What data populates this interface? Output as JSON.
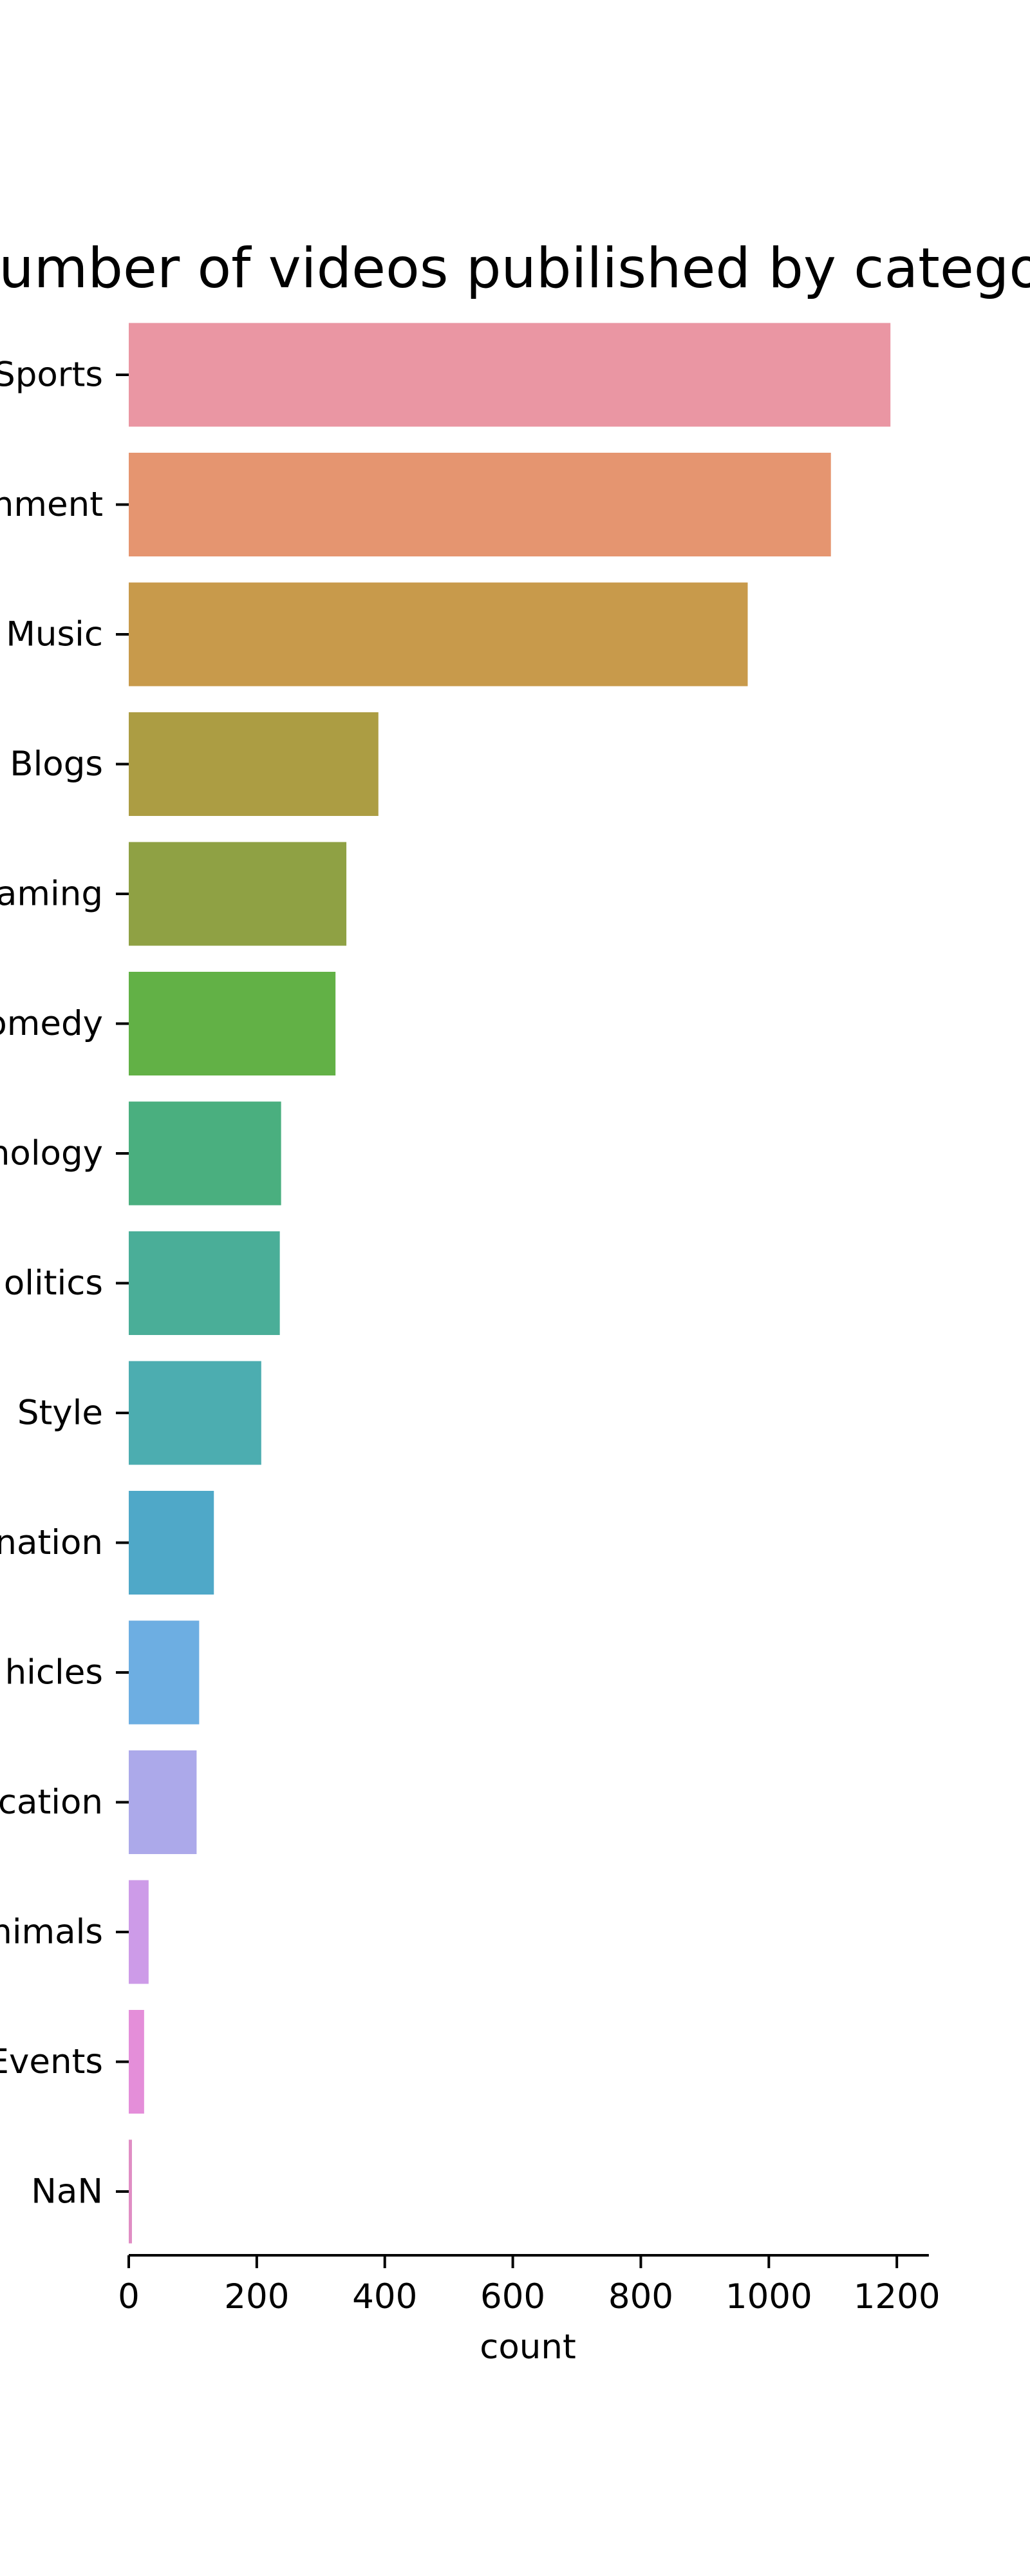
{
  "chart_data": {
    "type": "bar",
    "orientation": "horizontal",
    "title": "Number of videos pubilished by category",
    "xlabel": "count",
    "ylabel": "",
    "xlim": [
      0,
      1250
    ],
    "xticks": [
      0,
      200,
      400,
      600,
      800,
      1000,
      1200
    ],
    "categories": [
      "Sports",
      "Entertainment",
      "Music",
      "People & Blogs",
      "Gaming",
      "Comedy",
      "Science & Technology",
      "News & Politics",
      "Howto & Style",
      "Film & Animation",
      "Autos & Vehicles",
      "Education",
      "Pets & Animals",
      "Travel & Events",
      "NaN"
    ],
    "visible_labels": [
      "Sports",
      "nment",
      "Music",
      "Blogs",
      "aming",
      "omedy",
      "nology",
      "olitics",
      "Style",
      "nation",
      "hicles",
      "cation",
      "nimals",
      "Events",
      "NaN"
    ],
    "values": [
      1190,
      1097,
      967,
      390,
      340,
      323,
      238,
      236,
      207,
      133,
      110,
      106,
      31,
      24,
      5
    ],
    "colors": [
      "#ea96a3",
      "#e59570",
      "#c89a4b",
      "#ac9d43",
      "#8fa144",
      "#62b146",
      "#4aaf7f",
      "#4aae98",
      "#4cadb0",
      "#4fa8c8",
      "#6daee2",
      "#aca9ea",
      "#cd9be8",
      "#e48ed9",
      "#e08dc4"
    ],
    "grid": false,
    "legend": "none"
  }
}
